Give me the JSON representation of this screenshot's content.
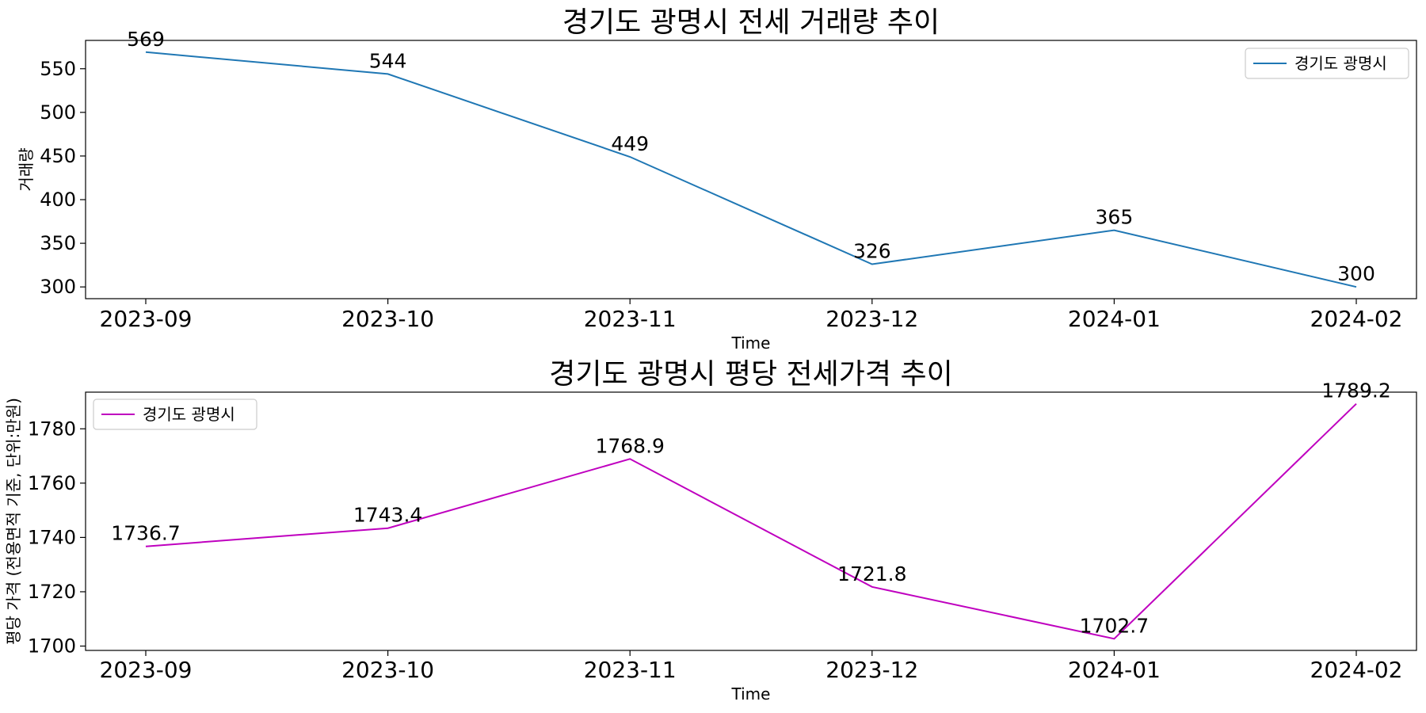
{
  "chart_data": [
    {
      "type": "line",
      "title": "경기도 광명시 전세 거래량 추이",
      "xlabel": "Time",
      "ylabel": "거래량",
      "categories": [
        "2023-09",
        "2023-10",
        "2023-11",
        "2023-12",
        "2024-01",
        "2024-02"
      ],
      "series": [
        {
          "name": "경기도 광명시",
          "color": "#1f77b4",
          "values": [
            569,
            544,
            449,
            326,
            365,
            300
          ],
          "labels": [
            "569",
            "544",
            "449",
            "326",
            "365",
            "300"
          ]
        }
      ],
      "ylim": [
        286.55,
        582.45
      ],
      "yticks": [
        300,
        350,
        400,
        450,
        500,
        550
      ],
      "legend": "top-right",
      "grid": false
    },
    {
      "type": "line",
      "title": "경기도 광명시 평당 전세가격 추이",
      "xlabel": "Time",
      "ylabel": "평당 가격 (전용면적 기준, 단위:만원)",
      "categories": [
        "2023-09",
        "2023-10",
        "2023-11",
        "2023-12",
        "2024-01",
        "2024-02"
      ],
      "series": [
        {
          "name": "경기도 광명시",
          "color": "#bf00bf",
          "values": [
            1736.7,
            1743.4,
            1768.9,
            1721.8,
            1702.7,
            1789.2
          ],
          "labels": [
            "1736.7",
            "1743.4",
            "1768.9",
            "1721.8",
            "1702.7",
            "1789.2"
          ]
        }
      ],
      "ylim": [
        1698.4,
        1793.5
      ],
      "yticks": [
        1700,
        1720,
        1740,
        1760,
        1780
      ],
      "legend": "top-left",
      "grid": false
    }
  ]
}
